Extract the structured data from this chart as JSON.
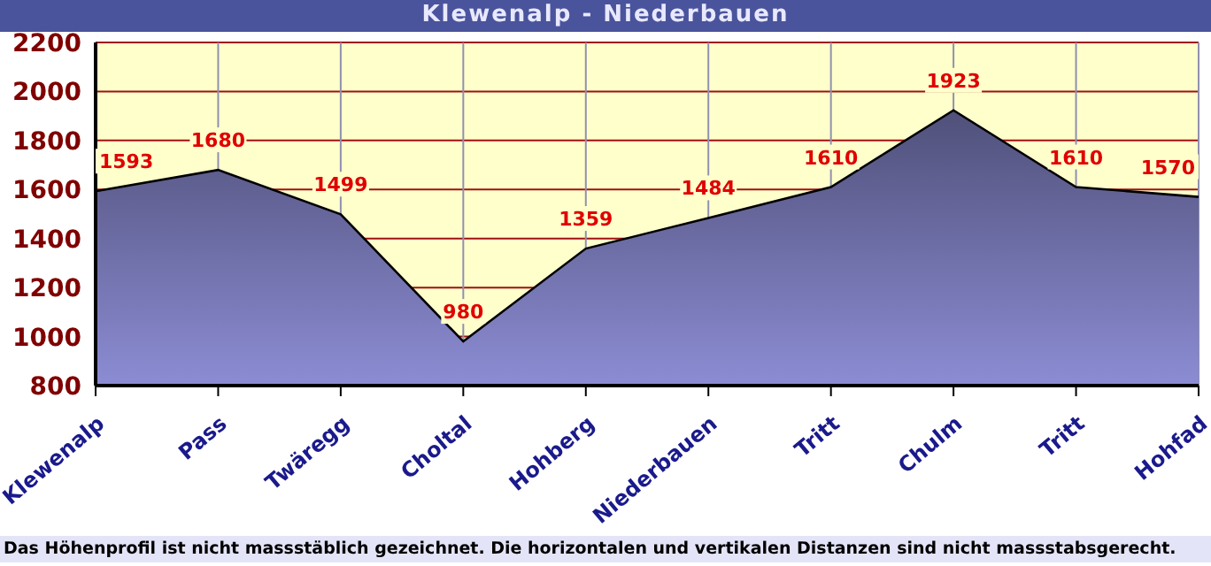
{
  "chart_data": {
    "type": "area",
    "title": "Klewenalp - Niederbauen",
    "categories": [
      "Klewenalp",
      "Pass",
      "Twäregg",
      "Choltal",
      "Hohberg",
      "Niederbauen",
      "Tritt",
      "Chulm",
      "Tritt",
      "Hohfad"
    ],
    "series": [
      {
        "color": "#8c8cd4",
        "values": [
          1593,
          1680,
          1499,
          980,
          1359,
          1484,
          1610,
          1923,
          1610,
          1570
        ]
      }
    ],
    "ylim": [
      800,
      2200
    ],
    "yticks": [
      800,
      1000,
      1200,
      1400,
      1600,
      1800,
      2000,
      2200
    ],
    "grid": true,
    "data_labels": true,
    "legend": false,
    "annotations": [
      "Das Höhenprofil ist nicht massstäblich gezeichnet. Die horizontalen und vertikalen Distanzen sind nicht massstabsgerecht."
    ]
  }
}
